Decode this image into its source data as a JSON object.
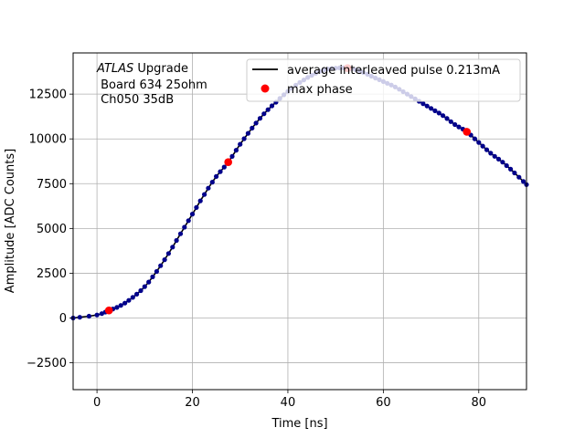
{
  "chart_data": {
    "type": "scatter",
    "title": "",
    "xlabel": "Time [ns]",
    "ylabel": "Amplitude [ADC Counts]",
    "xlim": [
      -5,
      90
    ],
    "ylim": [
      -4000,
      14800
    ],
    "xticks": [
      0,
      20,
      40,
      60,
      80
    ],
    "yticks": [
      -2500,
      0,
      2500,
      5000,
      7500,
      10000,
      12500
    ],
    "grid": true,
    "annotation": {
      "italic": "ATLAS",
      "rest": " Upgrade",
      "line2": " Board 634 25ohm",
      "line3": " Ch050 35dB"
    },
    "legend": {
      "placement": "top-right",
      "entries": [
        {
          "label": "average interleaved pulse 0.213mA",
          "marker": "line",
          "color": "#000000"
        },
        {
          "label": "max phase",
          "marker": "dot",
          "color": "#ff0000"
        }
      ]
    },
    "series": [
      {
        "name": "average interleaved pulse 0.213mA",
        "color": "#00008b",
        "x": [
          -5,
          0,
          2.5,
          5,
          7.5,
          10,
          12.5,
          15,
          17.5,
          20,
          22.5,
          25,
          27.5,
          30,
          32.5,
          35,
          37.5,
          40,
          42.5,
          45,
          47.5,
          50,
          52.5,
          55,
          57.5,
          60,
          62.5,
          65,
          67.5,
          70,
          72.5,
          75,
          77.5,
          80,
          82.5,
          85,
          87.5,
          90
        ],
        "y": [
          0,
          170,
          420,
          700,
          1150,
          1750,
          2600,
          3600,
          4700,
          5800,
          6900,
          7900,
          8700,
          9700,
          10600,
          11400,
          12050,
          12650,
          13150,
          13550,
          13850,
          13950,
          13950,
          13800,
          13500,
          13200,
          12900,
          12500,
          12100,
          11700,
          11300,
          10800,
          10400,
          9800,
          9200,
          8700,
          8100,
          7450
        ]
      },
      {
        "name": "max phase",
        "color": "#ff0000",
        "x": [
          2.5,
          27.5,
          52.5,
          77.5
        ],
        "y": [
          420,
          8700,
          13950,
          10400
        ]
      }
    ]
  }
}
